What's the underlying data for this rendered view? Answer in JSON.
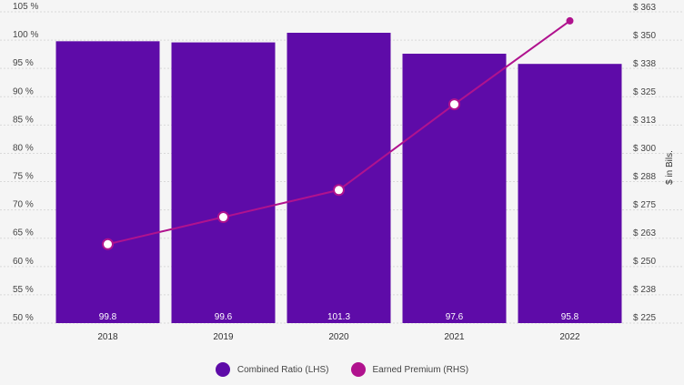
{
  "chart_data": {
    "type": "bar",
    "categories": [
      "2018",
      "2019",
      "2020",
      "2021",
      "2022"
    ],
    "series": [
      {
        "name": "Combined Ratio (LHS)",
        "type": "bar",
        "axis": "left",
        "color": "#5e0ba8",
        "values": [
          99.8,
          99.6,
          101.3,
          97.6,
          95.8
        ],
        "labels": [
          "99.8",
          "99.6",
          "101.3",
          "97.6",
          "95.8"
        ]
      },
      {
        "name": "Earned Premium (RHS)",
        "type": "line",
        "axis": "right",
        "color": "#b0128e",
        "values": [
          260,
          272,
          284,
          322,
          359
        ]
      }
    ],
    "y_left": {
      "ylim": [
        50,
        105
      ],
      "ticks": [
        "50 %",
        "55 %",
        "60 %",
        "65 %",
        "70 %",
        "75 %",
        "80 %",
        "85 %",
        "90 %",
        "95 %",
        "100 %",
        "105 %"
      ]
    },
    "y_right": {
      "label": "$ in Bils.",
      "ylim": [
        225,
        363
      ],
      "tick_values": [
        225,
        237.5,
        250,
        262.5,
        275,
        287.5,
        300,
        312.5,
        325,
        337.5,
        350,
        362.5
      ],
      "ticks": [
        "$ 225",
        "$ 238",
        "$ 250",
        "$ 263",
        "$ 275",
        "$ 288",
        "$ 300",
        "$ 313",
        "$ 325",
        "$ 338",
        "$ 350",
        "$ 363"
      ]
    },
    "grid": true,
    "legend_position": "bottom-center"
  },
  "legend": {
    "items": [
      {
        "label": "Combined Ratio (LHS)",
        "color": "#5e0ba8"
      },
      {
        "label": "Earned Premium (RHS)",
        "color": "#b0128e"
      }
    ]
  }
}
